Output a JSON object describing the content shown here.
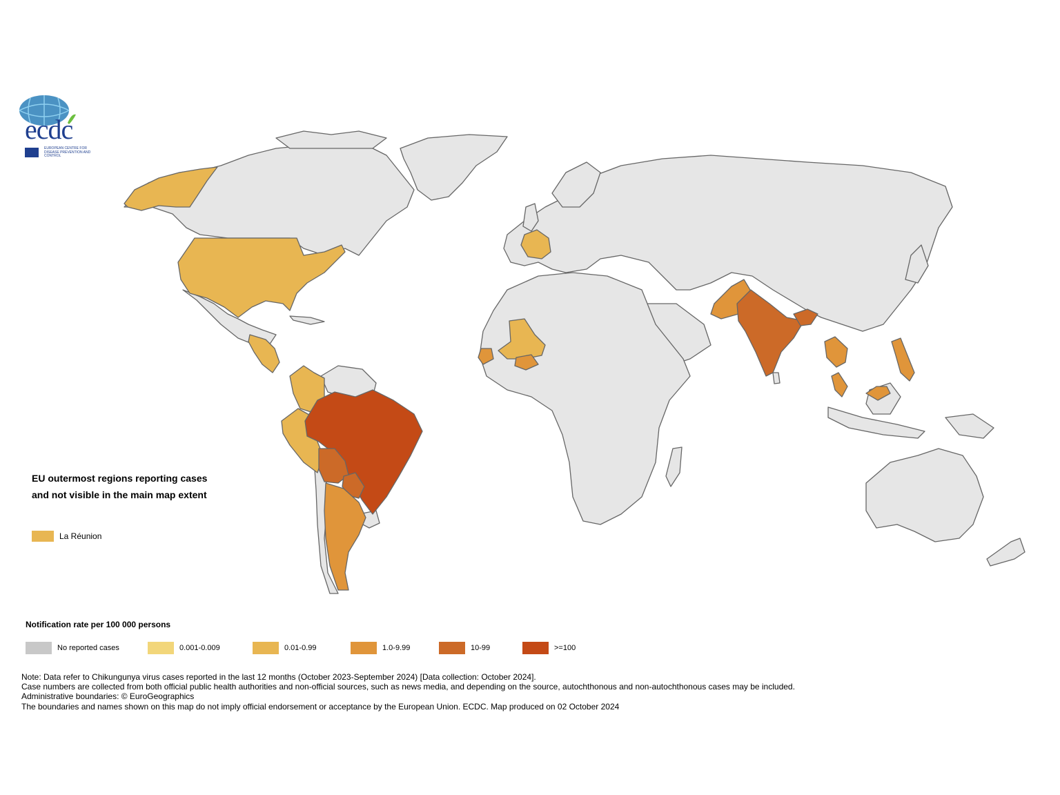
{
  "logo": {
    "text": "ecdc",
    "subtitle": "European Centre for Disease Prevention and Control",
    "globe_color": "#2b7fb8",
    "leaf_color": "#6cbf3f",
    "text_color": "#1f3f8f"
  },
  "colors": {
    "no_cases": "#c8c8c8",
    "land_default": "#e6e6e6",
    "border": "#666666",
    "rate_0001_0009": "#f2d67a",
    "rate_001_099": "#e8b652",
    "rate_1_999": "#e0953a",
    "rate_10_99": "#cc6a28",
    "rate_100_plus": "#c44a16"
  },
  "regions": [
    {
      "name": "United States",
      "class": "0.01-0.99"
    },
    {
      "name": "Alaska",
      "class": "0.01-0.99"
    },
    {
      "name": "France",
      "class": "0.01-0.99"
    },
    {
      "name": "Central America",
      "class": "0.01-0.99"
    },
    {
      "name": "Colombia",
      "class": "0.01-0.99"
    },
    {
      "name": "Peru",
      "class": "0.01-0.99"
    },
    {
      "name": "Brazil",
      "class": ">=100"
    },
    {
      "name": "Bolivia",
      "class": "10-99"
    },
    {
      "name": "Paraguay",
      "class": "10-99"
    },
    {
      "name": "Argentina",
      "class": "1.0-9.99"
    },
    {
      "name": "Mali",
      "class": "0.01-0.99"
    },
    {
      "name": "Senegal",
      "class": "1.0-9.99"
    },
    {
      "name": "Burkina Faso",
      "class": "1.0-9.99"
    },
    {
      "name": "Pakistan",
      "class": "1.0-9.99"
    },
    {
      "name": "India",
      "class": "10-99"
    },
    {
      "name": "Bangladesh",
      "class": "10-99"
    },
    {
      "name": "Thailand",
      "class": "1.0-9.99"
    },
    {
      "name": "Malaysia",
      "class": "1.0-9.99"
    },
    {
      "name": "Philippines",
      "class": "1.0-9.99"
    }
  ],
  "outermost": {
    "title": "EU outermost regions reporting cases and not visible in the main map extent",
    "items": [
      {
        "label": "La Réunion",
        "color": "#e8b652"
      }
    ]
  },
  "legend": {
    "title": "Notification rate per 100 000 persons",
    "items": [
      {
        "label": "No reported cases",
        "color": "#c8c8c8"
      },
      {
        "label": "0.001-0.009",
        "color": "#f2d67a"
      },
      {
        "label": "0.01-0.99",
        "color": "#e8b652"
      },
      {
        "label": "1.0-9.99",
        "color": "#e0953a"
      },
      {
        "label": "10-99",
        "color": "#cc6a28"
      },
      {
        "label": ">=100",
        "color": "#c44a16"
      }
    ]
  },
  "notes": [
    "Note: Data refer to Chikungunya virus cases reported in the last 12 months (October 2023-September 2024) [Data collection: October 2024].",
    "Case numbers are collected from both official public health authorities and non-official sources, such as news media, and depending on the source, autochthonous and non-autochthonous cases may be included.",
    "Administrative boundaries: © EuroGeographics",
    "The boundaries and names shown on this map do not imply official endorsement or acceptance by the European Union. ECDC. Map produced on 02 October 2024"
  ]
}
